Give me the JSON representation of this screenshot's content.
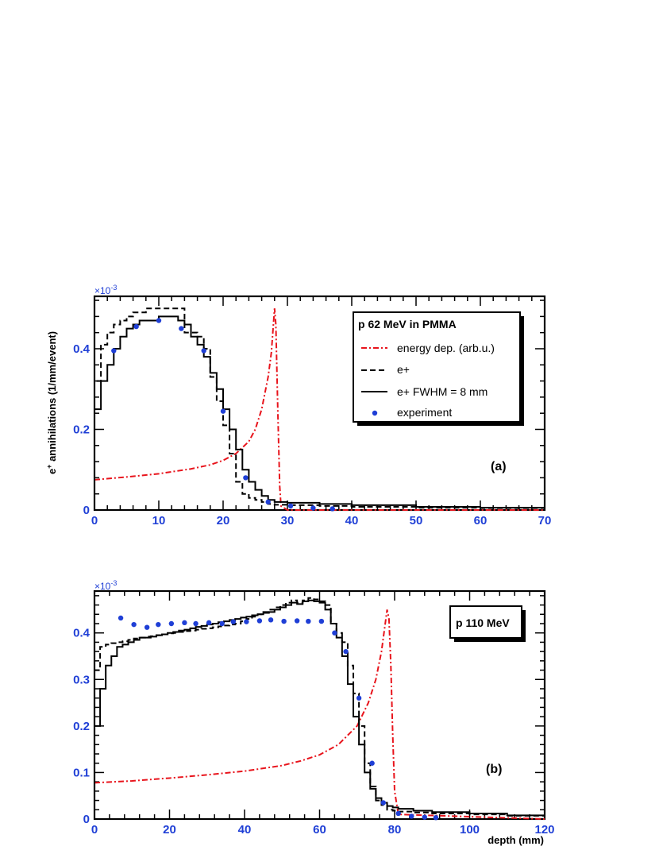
{
  "chart_data": [
    {
      "type": "line",
      "panel_label": "(a)",
      "legend_title": "p 62 MeV in PMMA",
      "ylabel": "e+ annihilations (1/mm/event)",
      "y_multiplier": "×10-3",
      "xlim": [
        0,
        70
      ],
      "ylim": [
        0,
        0.53
      ],
      "x_ticks": [
        0,
        10,
        20,
        30,
        40,
        50,
        60,
        70
      ],
      "y_ticks": [
        0,
        0.2,
        0.4
      ],
      "legend_position": "top-right",
      "series": [
        {
          "name": "energy dep. (arb.u.)",
          "style": "dash-dot",
          "color": "#e8141c",
          "x": [
            0,
            5,
            10,
            15,
            18,
            20,
            22,
            24,
            25,
            26,
            27,
            27.5,
            28,
            28.2,
            28.5,
            28.8,
            29,
            30,
            70
          ],
          "y": [
            0.075,
            0.082,
            0.09,
            0.102,
            0.112,
            0.123,
            0.14,
            0.17,
            0.2,
            0.25,
            0.33,
            0.39,
            0.5,
            0.46,
            0.25,
            0.06,
            0.01,
            0.0,
            0.0
          ]
        },
        {
          "name": "e+",
          "style": "dashed-step",
          "color": "#000000",
          "x": [
            0,
            1,
            2,
            3,
            4,
            5,
            6,
            7,
            8,
            9,
            10,
            11,
            12,
            13,
            14,
            15,
            16,
            17,
            18,
            19,
            20,
            21,
            22,
            23,
            24,
            25,
            26,
            27,
            28,
            30,
            35,
            40,
            50,
            60,
            70
          ],
          "y": [
            0.32,
            0.41,
            0.44,
            0.46,
            0.47,
            0.48,
            0.49,
            0.49,
            0.5,
            0.5,
            0.5,
            0.5,
            0.5,
            0.5,
            0.44,
            0.44,
            0.43,
            0.4,
            0.33,
            0.27,
            0.21,
            0.14,
            0.07,
            0.04,
            0.03,
            0.025,
            0.02,
            0.015,
            0.013,
            0.012,
            0.01,
            0.008,
            0.006,
            0.005,
            0.004
          ]
        },
        {
          "name": "e+ FWHM = 8 mm",
          "style": "solid-step",
          "color": "#000000",
          "x": [
            0,
            1,
            2,
            3,
            4,
            5,
            6,
            7,
            8,
            9,
            10,
            11,
            12,
            13,
            14,
            15,
            16,
            17,
            18,
            19,
            20,
            21,
            22,
            23,
            24,
            25,
            26,
            27,
            28,
            30,
            35,
            40,
            50,
            60,
            70
          ],
          "y": [
            0.25,
            0.32,
            0.36,
            0.4,
            0.43,
            0.45,
            0.46,
            0.47,
            0.47,
            0.47,
            0.48,
            0.48,
            0.48,
            0.47,
            0.46,
            0.43,
            0.41,
            0.38,
            0.34,
            0.3,
            0.25,
            0.2,
            0.15,
            0.1,
            0.07,
            0.05,
            0.035,
            0.025,
            0.02,
            0.018,
            0.015,
            0.012,
            0.008,
            0.006,
            0.004
          ]
        },
        {
          "name": "experiment",
          "style": "markers",
          "color": "#1f3fd6",
          "x": [
            3,
            6.5,
            10,
            13.5,
            17,
            20,
            23.5,
            27,
            30.5,
            34,
            37
          ],
          "y": [
            0.395,
            0.455,
            0.47,
            0.45,
            0.395,
            0.245,
            0.08,
            0.02,
            0.01,
            0.005,
            0.003
          ]
        }
      ]
    },
    {
      "type": "line",
      "panel_label": "(b)",
      "legend_title": "p 110 MeV",
      "xlabel": "depth (mm)",
      "y_multiplier": "×10-3",
      "xlim": [
        0,
        120
      ],
      "ylim": [
        0,
        0.49
      ],
      "x_ticks": [
        0,
        20,
        40,
        60,
        80,
        100,
        120
      ],
      "y_ticks": [
        0,
        0.1,
        0.2,
        0.3,
        0.4
      ],
      "legend_position": "top-right",
      "series": [
        {
          "name": "energy dep. (arb.u.)",
          "style": "dash-dot",
          "color": "#e8141c",
          "x": [
            0,
            10,
            20,
            30,
            40,
            50,
            55,
            60,
            65,
            70,
            73,
            75,
            76.5,
            77.5,
            78,
            78.5,
            79,
            79.5,
            80,
            81,
            120
          ],
          "y": [
            0.078,
            0.082,
            0.088,
            0.095,
            0.103,
            0.115,
            0.125,
            0.138,
            0.16,
            0.2,
            0.25,
            0.3,
            0.36,
            0.42,
            0.45,
            0.43,
            0.33,
            0.18,
            0.06,
            0.01,
            0.0
          ]
        },
        {
          "name": "e+",
          "style": "dashed-step",
          "color": "#000000",
          "x": [
            0,
            1.5,
            3,
            4.5,
            6,
            7.5,
            9,
            10.5,
            12,
            13.5,
            15,
            16.5,
            18,
            19.5,
            21,
            22.5,
            24,
            25.5,
            27,
            28.5,
            30,
            31.5,
            33,
            34.5,
            36,
            37.5,
            39,
            40.5,
            42,
            43.5,
            45,
            46.5,
            48,
            49.5,
            51,
            52.5,
            54,
            55.5,
            57,
            58.5,
            60,
            61.5,
            63,
            64.5,
            66,
            67.5,
            69,
            70.5,
            72,
            73.5,
            75,
            76.5,
            78,
            79.5,
            81,
            85,
            90,
            100,
            110,
            120
          ],
          "y": [
            0.32,
            0.37,
            0.375,
            0.378,
            0.38,
            0.382,
            0.385,
            0.388,
            0.39,
            0.392,
            0.393,
            0.395,
            0.397,
            0.399,
            0.4,
            0.402,
            0.404,
            0.405,
            0.407,
            0.409,
            0.41,
            0.412,
            0.414,
            0.416,
            0.418,
            0.42,
            0.425,
            0.43,
            0.435,
            0.44,
            0.445,
            0.45,
            0.455,
            0.46,
            0.465,
            0.47,
            0.465,
            0.47,
            0.475,
            0.472,
            0.468,
            0.46,
            0.42,
            0.4,
            0.38,
            0.33,
            0.27,
            0.2,
            0.12,
            0.07,
            0.04,
            0.03,
            0.02,
            0.018,
            0.016,
            0.014,
            0.012,
            0.01,
            0.007,
            0.004
          ]
        },
        {
          "name": "e+ FWHM = 8 mm",
          "style": "solid-step",
          "color": "#000000",
          "x": [
            0,
            1.5,
            3,
            4.5,
            6,
            7.5,
            9,
            10.5,
            12,
            13.5,
            15,
            16.5,
            18,
            19.5,
            21,
            22.5,
            24,
            25.5,
            27,
            28.5,
            30,
            31.5,
            33,
            34.5,
            36,
            37.5,
            39,
            40.5,
            42,
            43.5,
            45,
            46.5,
            48,
            49.5,
            51,
            52.5,
            54,
            55.5,
            57,
            58.5,
            60,
            61.5,
            63,
            64.5,
            66,
            67.5,
            69,
            70.5,
            72,
            73.5,
            75,
            76.5,
            78,
            79.5,
            81,
            85,
            90,
            100,
            110,
            120
          ],
          "y": [
            0.2,
            0.28,
            0.33,
            0.35,
            0.37,
            0.375,
            0.38,
            0.385,
            0.39,
            0.39,
            0.392,
            0.395,
            0.397,
            0.4,
            0.402,
            0.405,
            0.407,
            0.41,
            0.413,
            0.415,
            0.418,
            0.42,
            0.423,
            0.425,
            0.428,
            0.43,
            0.433,
            0.435,
            0.438,
            0.44,
            0.443,
            0.445,
            0.45,
            0.455,
            0.46,
            0.465,
            0.462,
            0.468,
            0.47,
            0.468,
            0.465,
            0.45,
            0.42,
            0.39,
            0.35,
            0.29,
            0.22,
            0.16,
            0.1,
            0.065,
            0.045,
            0.035,
            0.028,
            0.025,
            0.022,
            0.018,
            0.015,
            0.012,
            0.008,
            0.005
          ]
        },
        {
          "name": "experiment",
          "style": "markers",
          "color": "#1f3fd6",
          "x": [
            7,
            10.5,
            14,
            17,
            20.5,
            24,
            27,
            30.5,
            34,
            37,
            40.5,
            44,
            47,
            50.5,
            54,
            57,
            60.5,
            64,
            67,
            70.5,
            74,
            77,
            81,
            84.5,
            88,
            91
          ],
          "y": [
            0.432,
            0.418,
            0.412,
            0.418,
            0.42,
            0.422,
            0.42,
            0.422,
            0.42,
            0.424,
            0.424,
            0.426,
            0.428,
            0.425,
            0.426,
            0.425,
            0.425,
            0.4,
            0.36,
            0.26,
            0.12,
            0.035,
            0.012,
            0.006,
            0.004,
            0.003
          ]
        }
      ]
    }
  ]
}
